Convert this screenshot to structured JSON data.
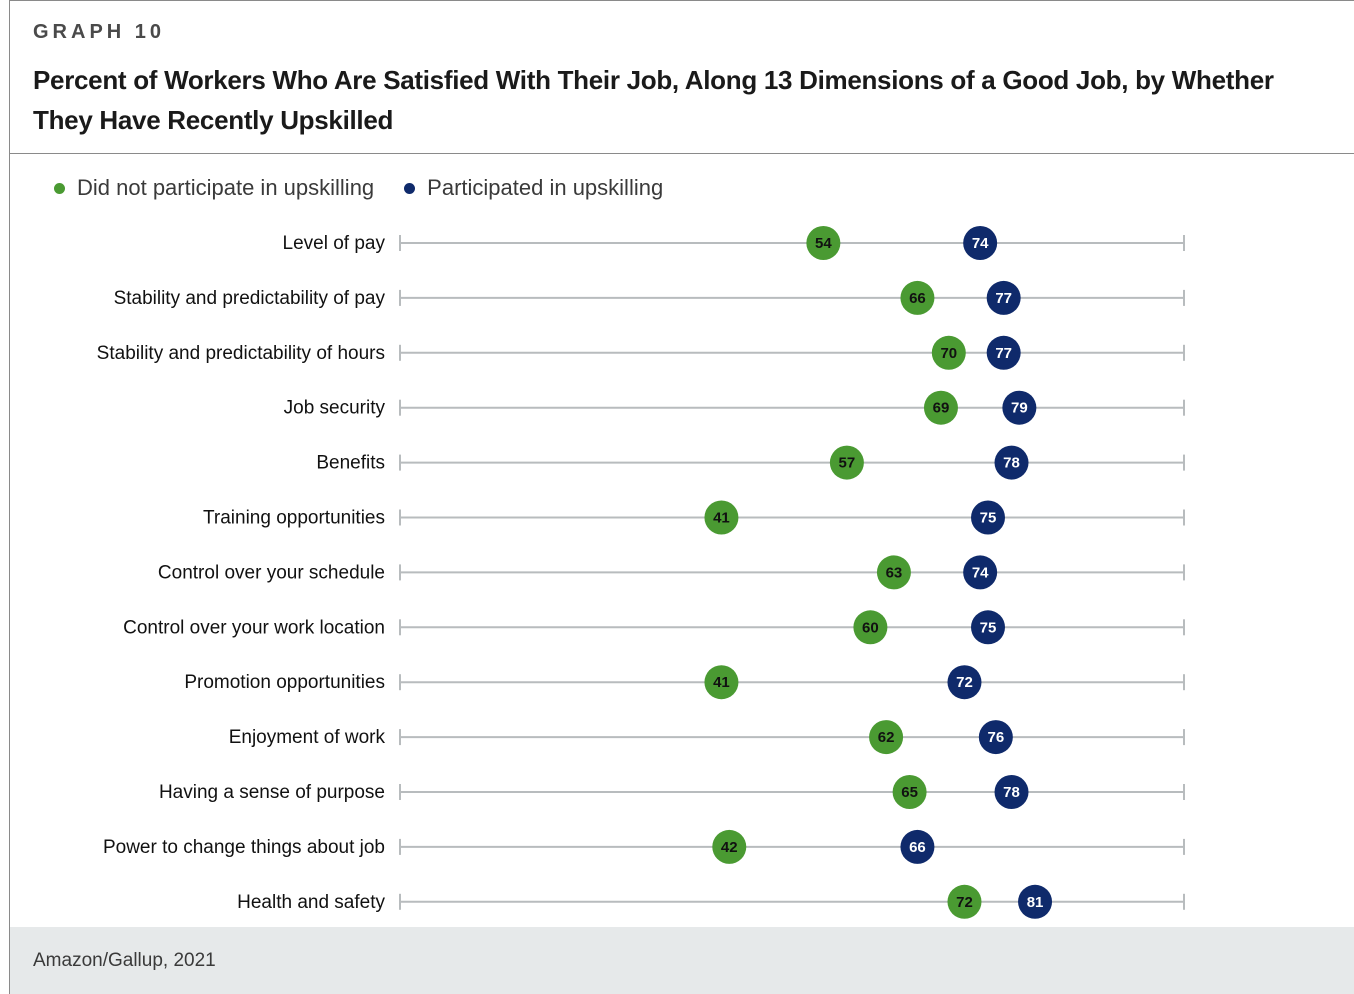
{
  "header": {
    "graph_label": "GRAPH 10",
    "title": "Percent of Workers Who Are Satisfied With Their Job, Along 13 Dimensions of a Good Job, by Whether They Have Recently Upskilled"
  },
  "footer": {
    "source": "Amazon/Gallup, 2021"
  },
  "colors": {
    "not_participated": "#4a9a32",
    "participated": "#0f2a6b",
    "line": "#b8bcbe"
  },
  "chart_data": {
    "type": "dumbbell",
    "title": "Percent of Workers Who Are Satisfied With Their Job, Along 13 Dimensions of a Good Job, by Whether They Have Recently Upskilled",
    "xlim": [
      0,
      100
    ],
    "grid": false,
    "legend_placement": "top-left",
    "categories": [
      "Level of pay",
      "Stability and predictability of pay",
      "Stability and predictability of hours",
      "Job security",
      "Benefits",
      "Training opportunities",
      "Control over your schedule",
      "Control over your work location",
      "Promotion opportunities",
      "Enjoyment of work",
      "Having a sense of purpose",
      "Power to change things about job",
      "Health and safety"
    ],
    "series": [
      {
        "name": "Did not participate in upskilling",
        "color": "#4a9a32",
        "values": [
          54,
          66,
          70,
          69,
          57,
          41,
          63,
          60,
          41,
          62,
          65,
          42,
          72
        ]
      },
      {
        "name": "Participated in upskilling",
        "color": "#0f2a6b",
        "values": [
          74,
          77,
          77,
          79,
          78,
          75,
          74,
          75,
          72,
          76,
          78,
          66,
          81
        ]
      }
    ]
  }
}
